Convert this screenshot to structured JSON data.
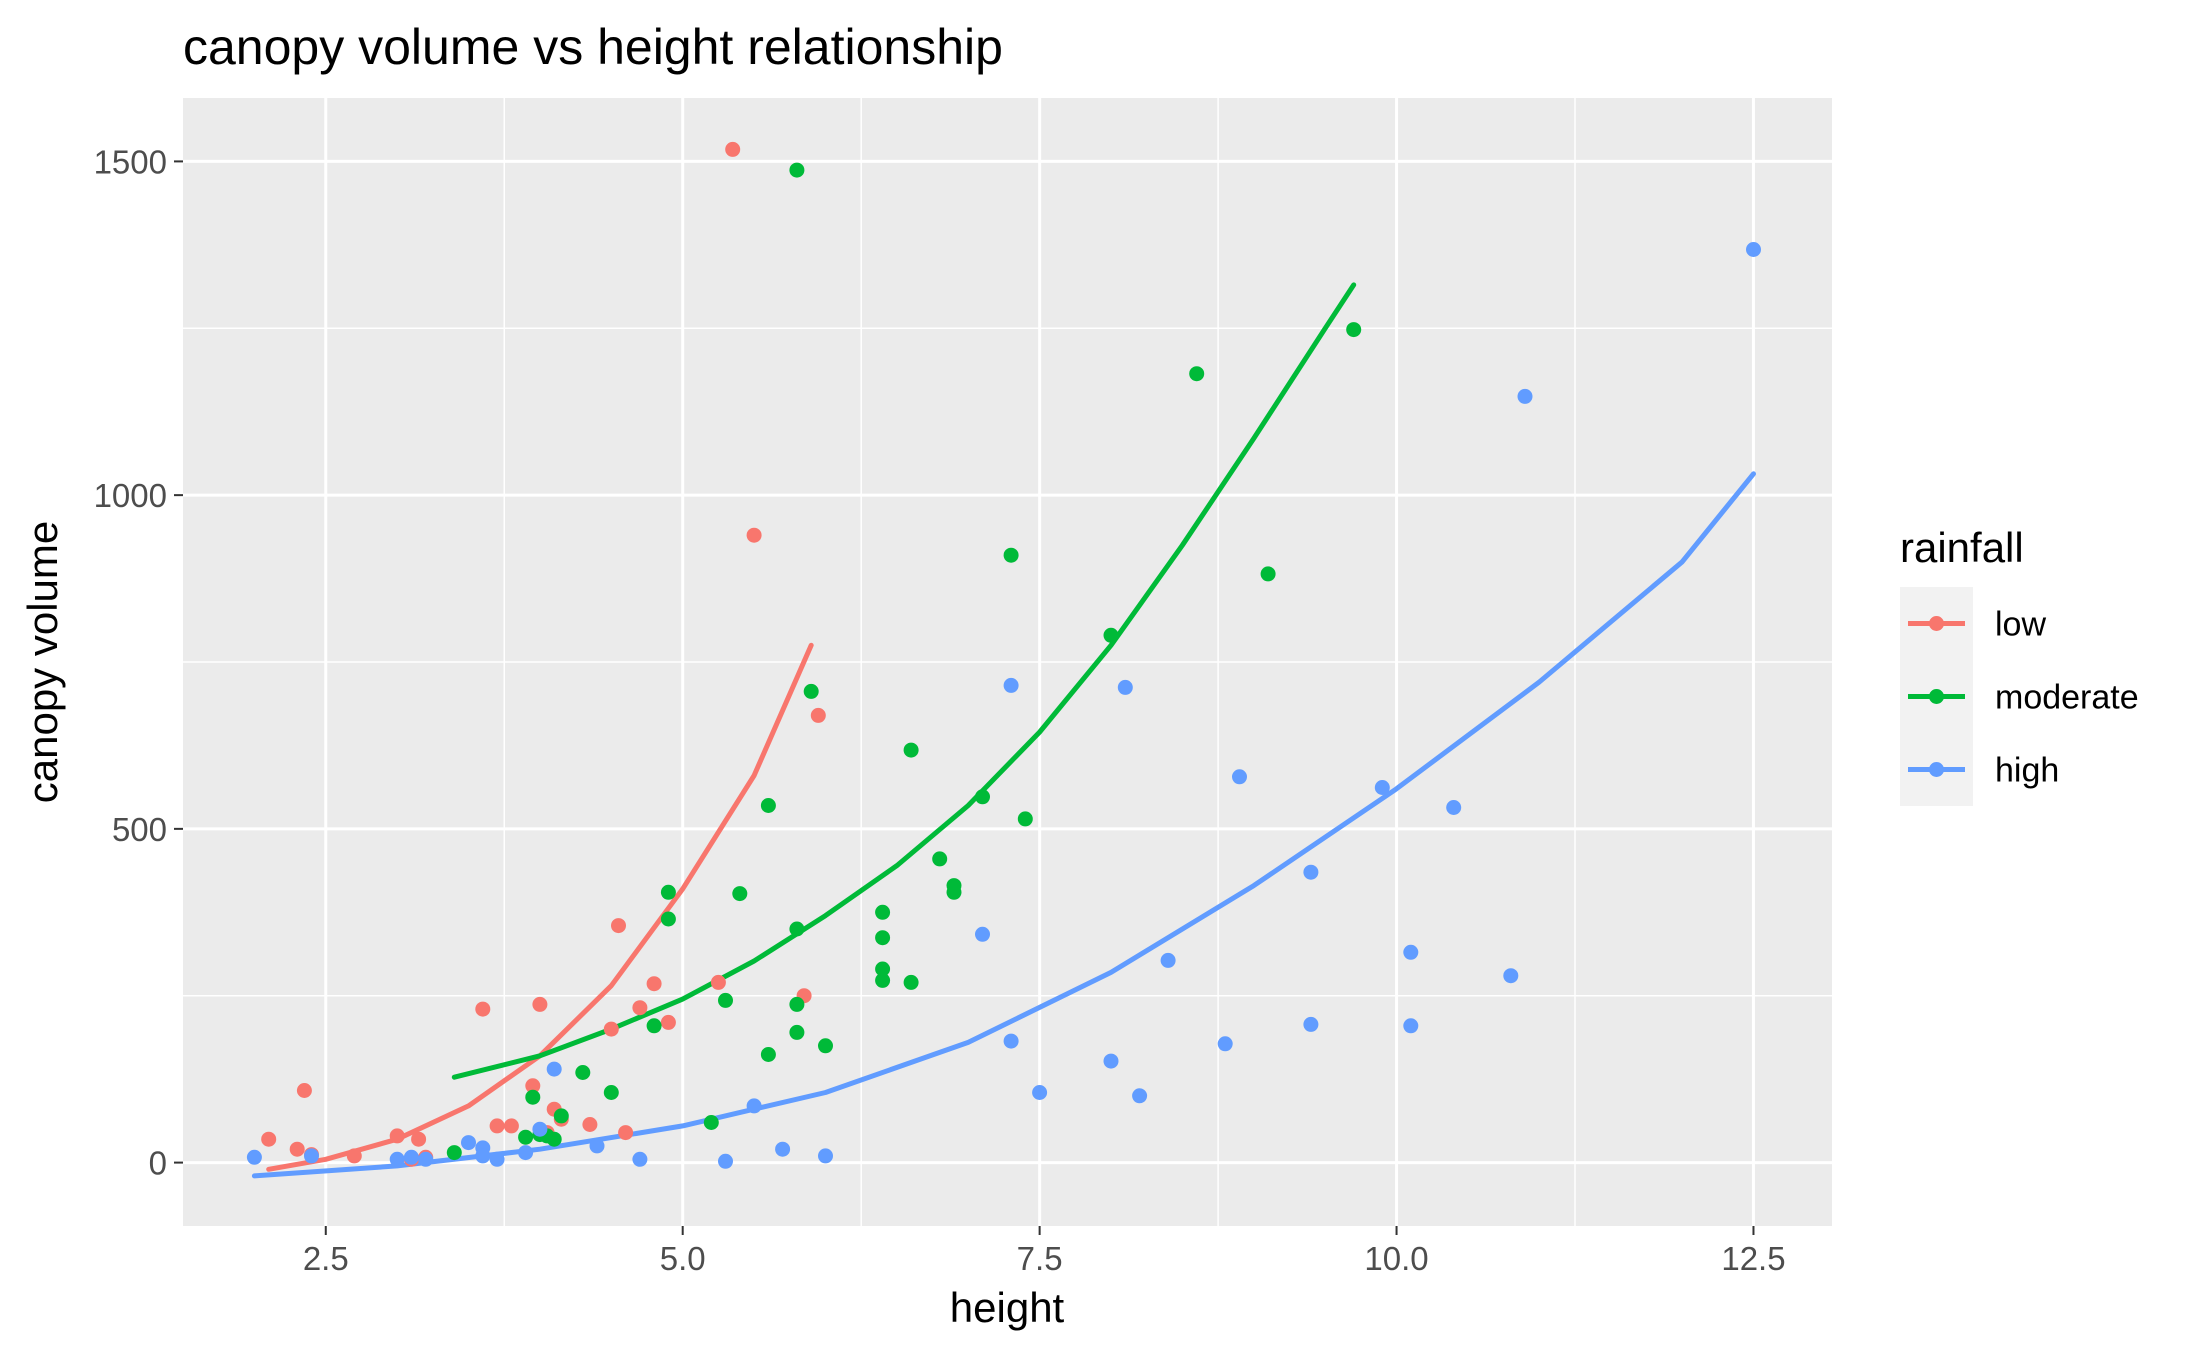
{
  "chart_data": {
    "type": "scatter",
    "title": "canopy volume vs height relationship",
    "xlabel": "height",
    "ylabel": "canopy volume",
    "xlim": [
      1.5,
      13.05
    ],
    "ylim": [
      -95,
      1595
    ],
    "x_ticks": [
      {
        "value": 2.5,
        "label": "2.5"
      },
      {
        "value": 5.0,
        "label": "5.0"
      },
      {
        "value": 7.5,
        "label": "7.5"
      },
      {
        "value": 10.0,
        "label": "10.0"
      },
      {
        "value": 12.5,
        "label": "12.5"
      }
    ],
    "y_ticks": [
      {
        "value": 0,
        "label": "0"
      },
      {
        "value": 500,
        "label": "500"
      },
      {
        "value": 1000,
        "label": "1000"
      },
      {
        "value": 1500,
        "label": "1500"
      }
    ],
    "grid": true,
    "background": "#ebebeb",
    "legend": {
      "title": "rainfall",
      "position": "right"
    },
    "series": [
      {
        "name": "low",
        "color": "#f8766d",
        "points": [
          [
            2.1,
            35
          ],
          [
            2.3,
            20
          ],
          [
            2.4,
            12
          ],
          [
            2.35,
            108
          ],
          [
            2.7,
            10
          ],
          [
            3.0,
            40
          ],
          [
            3.1,
            5
          ],
          [
            3.15,
            35
          ],
          [
            3.2,
            8
          ],
          [
            3.6,
            230
          ],
          [
            3.7,
            55
          ],
          [
            3.8,
            55
          ],
          [
            3.95,
            115
          ],
          [
            4.0,
            237
          ],
          [
            4.05,
            45
          ],
          [
            4.1,
            80
          ],
          [
            4.15,
            65
          ],
          [
            4.35,
            57
          ],
          [
            4.5,
            200
          ],
          [
            4.55,
            355
          ],
          [
            4.6,
            45
          ],
          [
            4.7,
            232
          ],
          [
            4.8,
            268
          ],
          [
            4.9,
            210
          ],
          [
            5.25,
            270
          ],
          [
            5.35,
            1518
          ],
          [
            5.5,
            940
          ],
          [
            5.85,
            250
          ],
          [
            5.95,
            670
          ]
        ],
        "fit": [
          [
            2.1,
            -10
          ],
          [
            2.5,
            5
          ],
          [
            3.0,
            35
          ],
          [
            3.5,
            85
          ],
          [
            4.0,
            160
          ],
          [
            4.5,
            265
          ],
          [
            5.0,
            410
          ],
          [
            5.5,
            580
          ],
          [
            5.9,
            775
          ]
        ]
      },
      {
        "name": "moderate",
        "color": "#00ba38",
        "points": [
          [
            3.4,
            15
          ],
          [
            3.9,
            38
          ],
          [
            3.95,
            98
          ],
          [
            4.0,
            42
          ],
          [
            4.05,
            40
          ],
          [
            4.1,
            35
          ],
          [
            4.15,
            70
          ],
          [
            4.3,
            135
          ],
          [
            4.5,
            105
          ],
          [
            4.8,
            205
          ],
          [
            4.9,
            365
          ],
          [
            4.9,
            405
          ],
          [
            5.2,
            60
          ],
          [
            5.3,
            243
          ],
          [
            5.4,
            403
          ],
          [
            5.6,
            162
          ],
          [
            5.6,
            535
          ],
          [
            5.8,
            350
          ],
          [
            5.8,
            237
          ],
          [
            5.8,
            195
          ],
          [
            5.8,
            1487
          ],
          [
            5.9,
            706
          ],
          [
            6.0,
            175
          ],
          [
            6.4,
            375
          ],
          [
            6.4,
            337
          ],
          [
            6.4,
            290
          ],
          [
            6.4,
            273
          ],
          [
            6.6,
            618
          ],
          [
            6.6,
            270
          ],
          [
            6.8,
            455
          ],
          [
            6.9,
            415
          ],
          [
            6.9,
            405
          ],
          [
            7.1,
            548
          ],
          [
            7.3,
            910
          ],
          [
            7.4,
            515
          ],
          [
            8.0,
            790
          ],
          [
            8.6,
            1182
          ],
          [
            9.1,
            882
          ],
          [
            9.7,
            1248
          ]
        ],
        "fit": [
          [
            3.4,
            128
          ],
          [
            4.0,
            160
          ],
          [
            4.5,
            200
          ],
          [
            5.0,
            245
          ],
          [
            5.5,
            302
          ],
          [
            6.0,
            370
          ],
          [
            6.5,
            445
          ],
          [
            7.0,
            535
          ],
          [
            7.5,
            645
          ],
          [
            8.0,
            775
          ],
          [
            8.5,
            925
          ],
          [
            9.0,
            1085
          ],
          [
            9.5,
            1250
          ],
          [
            9.7,
            1315
          ]
        ]
      },
      {
        "name": "high",
        "color": "#619cff",
        "points": [
          [
            2.0,
            8
          ],
          [
            2.4,
            10
          ],
          [
            3.0,
            5
          ],
          [
            3.1,
            8
          ],
          [
            3.2,
            5
          ],
          [
            3.5,
            30
          ],
          [
            3.6,
            22
          ],
          [
            3.6,
            10
          ],
          [
            3.7,
            5
          ],
          [
            3.9,
            15
          ],
          [
            4.0,
            50
          ],
          [
            4.1,
            140
          ],
          [
            4.4,
            25
          ],
          [
            4.7,
            5
          ],
          [
            5.3,
            2
          ],
          [
            5.5,
            85
          ],
          [
            5.7,
            20
          ],
          [
            6.0,
            10
          ],
          [
            7.1,
            342
          ],
          [
            7.3,
            182
          ],
          [
            7.3,
            715
          ],
          [
            7.5,
            105
          ],
          [
            8.0,
            152
          ],
          [
            8.1,
            712
          ],
          [
            8.2,
            100
          ],
          [
            8.4,
            303
          ],
          [
            8.8,
            178
          ],
          [
            8.9,
            578
          ],
          [
            9.4,
            207
          ],
          [
            9.4,
            435
          ],
          [
            9.9,
            562
          ],
          [
            10.1,
            315
          ],
          [
            10.1,
            205
          ],
          [
            10.4,
            532
          ],
          [
            10.8,
            280
          ],
          [
            10.9,
            1148
          ],
          [
            12.5,
            1368
          ]
        ],
        "fit": [
          [
            2.0,
            -20
          ],
          [
            3.0,
            -5
          ],
          [
            4.0,
            20
          ],
          [
            5.0,
            55
          ],
          [
            6.0,
            105
          ],
          [
            7.0,
            180
          ],
          [
            8.0,
            285
          ],
          [
            9.0,
            415
          ],
          [
            10.0,
            560
          ],
          [
            11.0,
            720
          ],
          [
            12.0,
            900
          ],
          [
            12.5,
            1032
          ]
        ]
      }
    ]
  }
}
